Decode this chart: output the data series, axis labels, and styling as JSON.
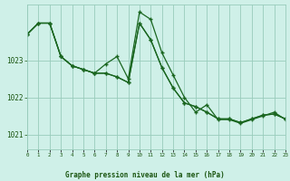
{
  "bg_color": "#cff0e8",
  "grid_color": "#99ccbb",
  "line_color": "#1a6620",
  "marker_color": "#1a6620",
  "title": "Graphe pression niveau de la mer (hPa)",
  "title_color": "#1a5510",
  "xlim": [
    0,
    23
  ],
  "ylim": [
    1020.6,
    1024.5
  ],
  "yticks": [
    1021,
    1022,
    1023
  ],
  "xtick_labels": [
    "0",
    "1",
    "2",
    "3",
    "4",
    "5",
    "6",
    "7",
    "8",
    "9",
    "10",
    "11",
    "12",
    "13",
    "14",
    "15",
    "16",
    "17",
    "18",
    "19",
    "20",
    "21",
    "22",
    "23"
  ],
  "series": [
    {
      "x": [
        0,
        1,
        2,
        3,
        4,
        5,
        6,
        7,
        8,
        9,
        10,
        11,
        12,
        13,
        14,
        15,
        16,
        17,
        18,
        19,
        20,
        21,
        22,
        23
      ],
      "y": [
        1023.7,
        1024.0,
        1024.0,
        1023.1,
        1022.85,
        1022.75,
        1022.65,
        1022.65,
        1022.55,
        1022.4,
        1024.0,
        1023.55,
        1022.8,
        1022.25,
        1021.85,
        1021.75,
        1021.6,
        1021.42,
        1021.42,
        1021.32,
        1021.42,
        1021.52,
        1021.55,
        1021.42
      ]
    },
    {
      "x": [
        0,
        1,
        2,
        3,
        4,
        5,
        6,
        7,
        8,
        9,
        10,
        11,
        12,
        13,
        14,
        15,
        16,
        17,
        18,
        19,
        20,
        21,
        22,
        23
      ],
      "y": [
        1023.7,
        1024.0,
        1024.0,
        1023.1,
        1022.85,
        1022.75,
        1022.65,
        1022.9,
        1023.1,
        1022.5,
        1024.3,
        1024.1,
        1023.2,
        1022.6,
        1022.0,
        1021.6,
        1021.8,
        1021.4,
        1021.4,
        1021.3,
        1021.4,
        1021.5,
        1021.6,
        1021.4
      ]
    },
    {
      "x": [
        0,
        1,
        2,
        3,
        4,
        5,
        6,
        7,
        8,
        9,
        10,
        11,
        12,
        13,
        14,
        15,
        16,
        17,
        18,
        19,
        20,
        21,
        22,
        23
      ],
      "y": [
        1023.7,
        1024.0,
        1024.0,
        1023.1,
        1022.85,
        1022.75,
        1022.65,
        1022.65,
        1022.55,
        1022.4,
        1024.0,
        1023.55,
        1022.8,
        1022.25,
        1021.85,
        1021.75,
        1021.6,
        1021.42,
        1021.42,
        1021.32,
        1021.42,
        1021.52,
        1021.55,
        1021.42
      ]
    }
  ]
}
